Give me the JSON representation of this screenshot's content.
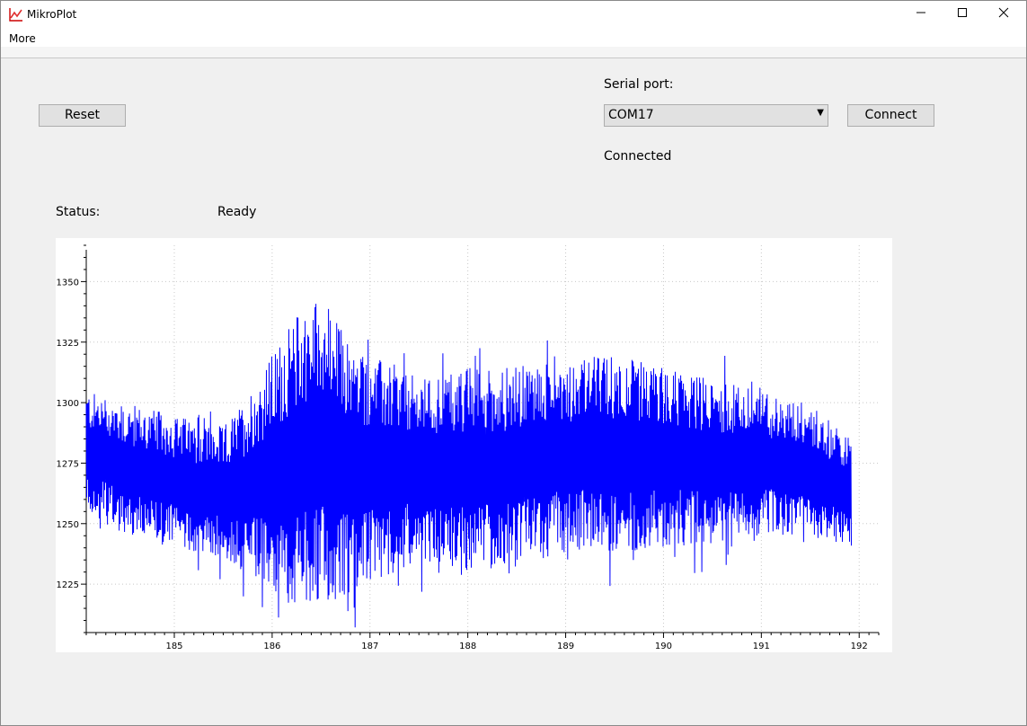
{
  "window": {
    "title": "MikroPlot",
    "app_icon": "line-chart-icon"
  },
  "menu": {
    "more": "More"
  },
  "controls": {
    "reset_label": "Reset",
    "serial_port_label": "Serial port:",
    "serial_port_value": "COM17",
    "connect_label": "Connect",
    "connection_status": "Connected",
    "status_label": "Status:",
    "status_value": "Ready"
  },
  "colors": {
    "series": "#0000ff",
    "background": "#f0f0f0",
    "grid": "#c8c8c8"
  },
  "chart_data": {
    "type": "line",
    "xlim": [
      184.1,
      192.2
    ],
    "ylim": [
      1205,
      1365
    ],
    "xticks": [
      185,
      186,
      187,
      188,
      189,
      190,
      191,
      192
    ],
    "yticks": [
      1225,
      1250,
      1275,
      1300,
      1325,
      1350
    ],
    "grid": true,
    "series": [
      {
        "x_start": 184.1,
        "x_end": 191.92,
        "envelope": [
          {
            "x": 184.1,
            "low": 1255,
            "high": 1305
          },
          {
            "x": 184.5,
            "low": 1245,
            "high": 1300
          },
          {
            "x": 185.0,
            "low": 1240,
            "high": 1295
          },
          {
            "x": 185.5,
            "low": 1235,
            "high": 1290
          },
          {
            "x": 185.7,
            "low": 1230,
            "high": 1300
          },
          {
            "x": 186.0,
            "low": 1220,
            "high": 1320
          },
          {
            "x": 186.3,
            "low": 1215,
            "high": 1340
          },
          {
            "x": 186.5,
            "low": 1215,
            "high": 1345
          },
          {
            "x": 186.8,
            "low": 1220,
            "high": 1325
          },
          {
            "x": 187.0,
            "low": 1225,
            "high": 1320
          },
          {
            "x": 187.5,
            "low": 1235,
            "high": 1310
          },
          {
            "x": 188.0,
            "low": 1230,
            "high": 1315
          },
          {
            "x": 188.5,
            "low": 1232,
            "high": 1315
          },
          {
            "x": 189.0,
            "low": 1238,
            "high": 1318
          },
          {
            "x": 189.5,
            "low": 1238,
            "high": 1320
          },
          {
            "x": 190.0,
            "low": 1240,
            "high": 1315
          },
          {
            "x": 190.5,
            "low": 1242,
            "high": 1310
          },
          {
            "x": 191.0,
            "low": 1245,
            "high": 1305
          },
          {
            "x": 191.5,
            "low": 1245,
            "high": 1300
          },
          {
            "x": 191.92,
            "low": 1240,
            "high": 1285
          }
        ]
      }
    ]
  }
}
